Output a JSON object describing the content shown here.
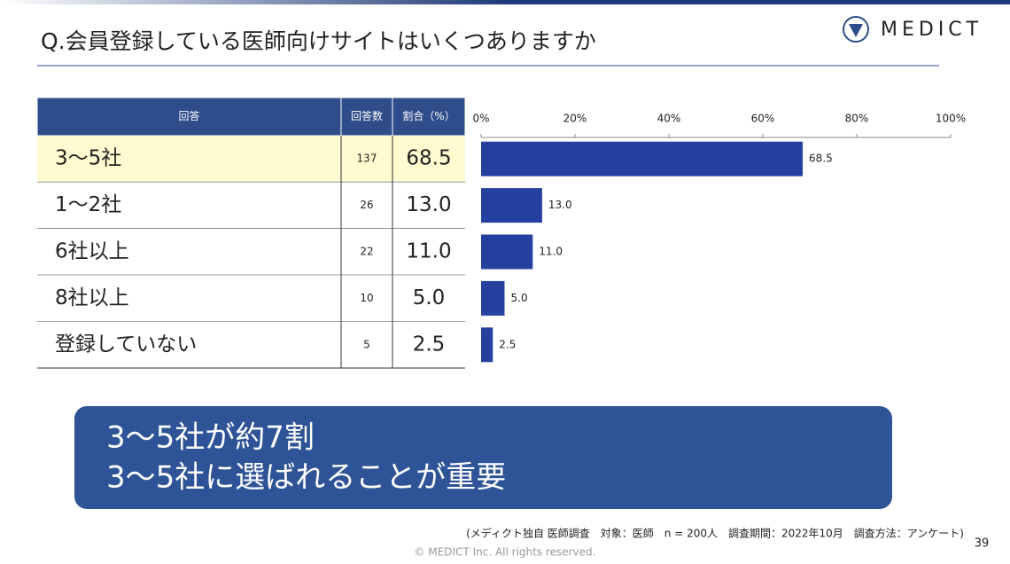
{
  "title": "Q.会員登録している医師向けサイトはいくつありますか",
  "logo": "MEDICT",
  "table": {
    "header": [
      "回答",
      "回答数",
      "割合（%）"
    ],
    "counts": [
      137,
      26,
      22,
      10,
      5
    ]
  },
  "chart_data": {
    "type": "bar",
    "orientation": "horizontal",
    "categories": [
      "3〜5社",
      "1〜2社",
      "6社以上",
      "8社以上",
      "登録していない"
    ],
    "values": [
      68.5,
      13.0,
      11.0,
      5.0,
      2.5
    ],
    "value_labels": [
      "68.5",
      "13.0",
      "11.0",
      "5.0",
      "2.5"
    ],
    "color": "#2541a0",
    "xlim": [
      0,
      100
    ],
    "xticks": [
      {
        "value": 0,
        "label": "0%"
      },
      {
        "value": 20,
        "label": "20%"
      },
      {
        "value": 40,
        "label": "40%"
      },
      {
        "value": 60,
        "label": "60%"
      },
      {
        "value": 80,
        "label": "80%"
      },
      {
        "value": 100,
        "label": "100%"
      }
    ]
  },
  "callout": [
    "3〜5社が約7割",
    "3〜5社に選ばれることが重要"
  ],
  "footnote": "(メディクト独自 医師調査　対象：医師　n = 200人　調査期間：2022年10月　調査方法：アンケート)",
  "page_number": "39",
  "copyright": "© MEDICT Inc.  All rights reserved."
}
